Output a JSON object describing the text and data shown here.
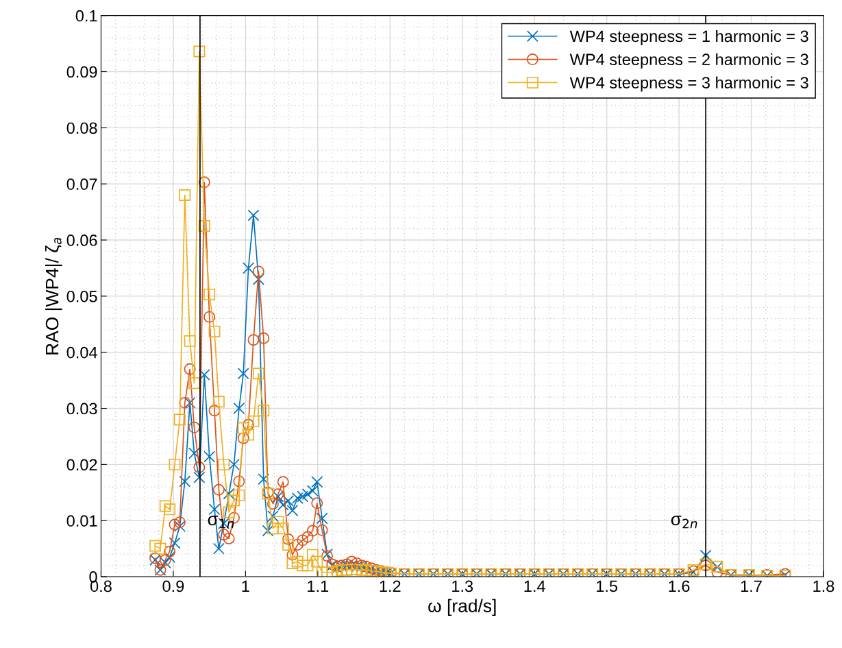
{
  "chart_data": {
    "type": "line",
    "xlabel": "ω [rad/s]",
    "ylabel": "RAO |WP4|/ ζ$_{a}$",
    "x": [
      0.875,
      0.882,
      0.889,
      0.895,
      0.902,
      0.909,
      0.916,
      0.923,
      0.929,
      0.936,
      0.943,
      0.95,
      0.957,
      0.963,
      0.97,
      0.977,
      0.984,
      0.991,
      0.997,
      1.004,
      1.011,
      1.018,
      1.025,
      1.031,
      1.038,
      1.045,
      1.052,
      1.059,
      1.065,
      1.072,
      1.079,
      1.086,
      1.093,
      1.099,
      1.106,
      1.113,
      1.12,
      1.127,
      1.133,
      1.14,
      1.147,
      1.154,
      1.161,
      1.167,
      1.174,
      1.181,
      1.188,
      1.195,
      1.201,
      1.22,
      1.24,
      1.26,
      1.28,
      1.3,
      1.32,
      1.34,
      1.36,
      1.38,
      1.4,
      1.42,
      1.44,
      1.46,
      1.48,
      1.5,
      1.52,
      1.54,
      1.56,
      1.58,
      1.6,
      1.62,
      1.637,
      1.653,
      1.672,
      1.697,
      1.722,
      1.747
    ],
    "series": [
      {
        "name": "WP4 steepness = 1 harmonic = 3",
        "color": "#0072bd",
        "marker": "cross",
        "values": [
          0.003,
          0.0012,
          0.0025,
          0.0035,
          0.006,
          0.009,
          0.017,
          0.031,
          0.022,
          0.0177,
          0.036,
          0.0214,
          0.012,
          0.005,
          0.0095,
          0.0148,
          0.02,
          0.03,
          0.0362,
          0.055,
          0.0644,
          0.053,
          0.0174,
          0.0082,
          0.0108,
          0.0143,
          0.0128,
          0.0135,
          0.0118,
          0.014,
          0.0143,
          0.0147,
          0.0153,
          0.0169,
          0.0104,
          0.004,
          0.002,
          0.0015,
          0.0018,
          0.002,
          0.002,
          0.0018,
          0.0018,
          0.0015,
          0.0013,
          0.001,
          0.0008,
          0.0007,
          0.0006,
          0.0005,
          0.0005,
          0.0005,
          0.0005,
          0.0005,
          0.0005,
          0.0005,
          0.0005,
          0.0005,
          0.0005,
          0.0005,
          0.0005,
          0.0005,
          0.0005,
          0.0005,
          0.0005,
          0.0005,
          0.0005,
          0.0005,
          0.0004,
          0.0008,
          0.0038,
          0.0017,
          0.0003,
          0.0003,
          0.0002,
          0.0003
        ]
      },
      {
        "name": "WP4 steepness = 2 harmonic = 3",
        "color": "#d95319",
        "marker": "circle",
        "values": [
          0.0033,
          0.0012,
          0.003,
          0.0045,
          0.0093,
          0.0097,
          0.031,
          0.037,
          0.0266,
          0.0195,
          0.0703,
          0.0463,
          0.0296,
          0.0155,
          0.0075,
          0.0068,
          0.0105,
          0.017,
          0.0247,
          0.0271,
          0.0422,
          0.0544,
          0.0425,
          0.015,
          0.013,
          0.0147,
          0.0169,
          0.0067,
          0.0039,
          0.0057,
          0.0065,
          0.0071,
          0.0082,
          0.0131,
          0.0083,
          0.0037,
          0.0022,
          0.0018,
          0.002,
          0.0022,
          0.0027,
          0.0024,
          0.002,
          0.0018,
          0.0015,
          0.0012,
          0.001,
          0.0008,
          0.0007,
          0.0005,
          0.0005,
          0.0005,
          0.0005,
          0.0005,
          0.0005,
          0.0005,
          0.0005,
          0.0005,
          0.0005,
          0.0005,
          0.0005,
          0.0005,
          0.0005,
          0.0005,
          0.0005,
          0.0005,
          0.0005,
          0.0005,
          0.0005,
          0.001,
          0.002,
          0.0008,
          0.0003,
          0.0003,
          0.0003,
          0.0005
        ]
      },
      {
        "name": "WP4 steepness = 3 harmonic = 3",
        "color": "#edb120",
        "marker": "square",
        "values": [
          0.0055,
          0.005,
          0.0126,
          0.012,
          0.02,
          0.028,
          0.068,
          0.042,
          0.0345,
          0.0936,
          0.0625,
          0.0503,
          0.0437,
          0.0312,
          0.02,
          0.0115,
          0.0136,
          0.0145,
          0.0265,
          0.0253,
          0.0277,
          0.0362,
          0.0296,
          0.0148,
          0.0086,
          0.0098,
          0.0086,
          0.0057,
          0.0024,
          0.0027,
          0.002,
          0.002,
          0.0039,
          0.0027,
          0.0008,
          0.0008,
          0.0008,
          0.001,
          0.0012,
          0.0012,
          0.0013,
          0.0013,
          0.0012,
          0.0012,
          0.001,
          0.001,
          0.0008,
          0.0007,
          0.0006,
          0.0005,
          0.0005,
          0.0005,
          0.0005,
          0.0005,
          0.0005,
          0.0005,
          0.0005,
          0.0005,
          0.0005,
          0.0005,
          0.0005,
          0.0005,
          0.0005,
          0.0005,
          0.0005,
          0.0005,
          0.0005,
          0.0005,
          0.0005,
          0.0012,
          0.0022,
          0.0018,
          0.0003,
          0.0003,
          0.0002,
          0.0002
        ]
      }
    ],
    "xlim": [
      0.8,
      1.8
    ],
    "xticks": [
      0.8,
      0.9,
      1,
      1.1,
      1.2,
      1.3,
      1.4,
      1.5,
      1.6,
      1.7,
      1.8
    ],
    "ylim": [
      0,
      0.1
    ],
    "yticks": [
      0,
      0.01,
      0.02,
      0.03,
      0.04,
      0.05,
      0.06,
      0.07,
      0.08,
      0.09,
      0.1
    ],
    "ref_lines": [
      {
        "axis": "x",
        "value": 0.937,
        "label": "σ$_{1n}$",
        "color": "#000000"
      },
      {
        "axis": "x",
        "value": 1.637,
        "label": "σ$_{2n}$",
        "color": "#000000"
      }
    ],
    "grid": true,
    "legend": "top right",
    "line_style": "solid"
  }
}
